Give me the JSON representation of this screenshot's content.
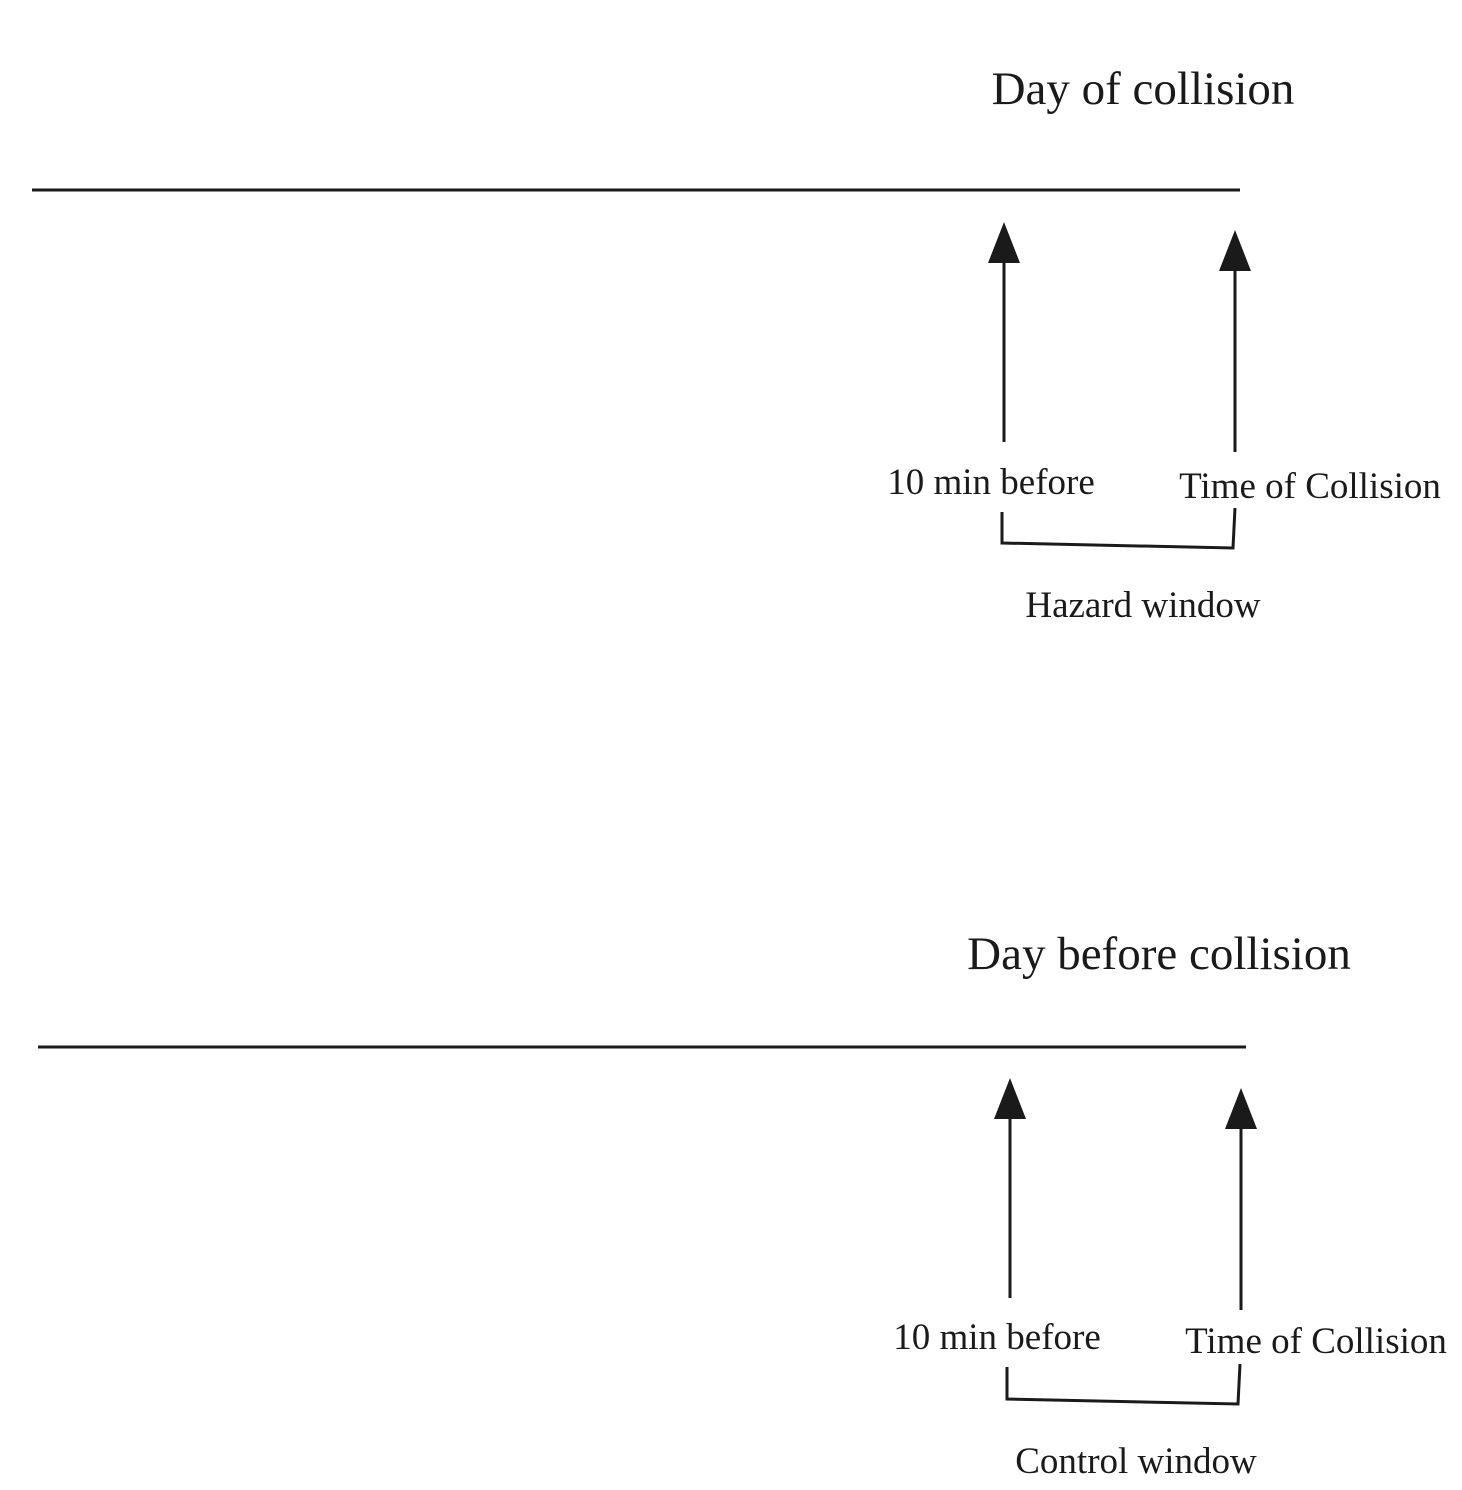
{
  "panels": [
    {
      "title": "Day of collision",
      "marker_start_label": "10 min before",
      "marker_end_label": "Time of Collision",
      "window_label": "Hazard window"
    },
    {
      "title": "Day before collision",
      "marker_start_label": "10 min before",
      "marker_end_label": "Time of Collision",
      "window_label": "Control window"
    }
  ],
  "colors": {
    "ink": "#1a1a1a",
    "background": "#ffffff"
  }
}
